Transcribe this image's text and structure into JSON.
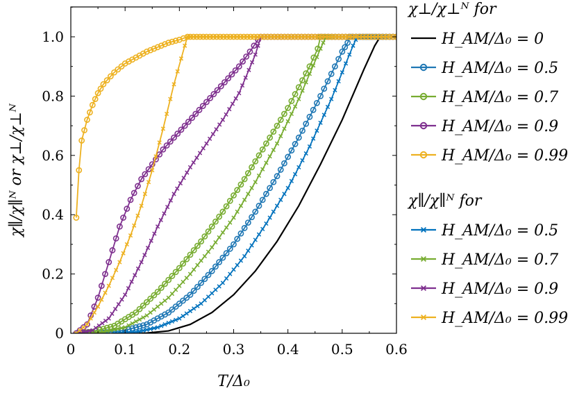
{
  "chart_data": {
    "type": "line",
    "xlabel": "T/Δ₀",
    "ylabel": "χ∥/χ∥ᴺ or χ⊥/χ⊥ᴺ",
    "xlim": [
      0,
      0.6
    ],
    "ylim": [
      0,
      1.1
    ],
    "xticks": [
      0,
      0.1,
      0.2,
      0.3,
      0.4,
      0.5,
      0.6
    ],
    "xtick_labels": [
      "0",
      "0.1",
      "0.2",
      "0.3",
      "0.4",
      "0.5",
      "0.6"
    ],
    "yticks": [
      0,
      0.2,
      0.4,
      0.6,
      0.8,
      1.0
    ],
    "ytick_labels": [
      "0",
      "0.2",
      "0.4",
      "0.6",
      "0.8",
      "1.0"
    ],
    "grid": false,
    "legend_placement": "outside-right",
    "legend_groups": [
      {
        "title": "χ⊥/χ⊥ᴺ for",
        "entries": [
          {
            "label": "H_AM/Δ₀ = 0",
            "color": "#000000",
            "marker": "none"
          },
          {
            "label": "H_AM/Δ₀ = 0.5",
            "color": "#1f77b4",
            "marker": "circle"
          },
          {
            "label": "H_AM/Δ₀ = 0.7",
            "color": "#77ac30",
            "marker": "circle"
          },
          {
            "label": "H_AM/Δ₀ = 0.9",
            "color": "#7e2f8e",
            "marker": "circle"
          },
          {
            "label": "H_AM/Δ₀ = 0.99",
            "color": "#edb120",
            "marker": "circle"
          }
        ]
      },
      {
        "title": "χ∥/χ∥ᴺ for",
        "entries": [
          {
            "label": "H_AM/Δ₀ = 0.5",
            "color": "#0072bd",
            "marker": "x"
          },
          {
            "label": "H_AM/Δ₀ = 0.7",
            "color": "#77ac30",
            "marker": "x"
          },
          {
            "label": "H_AM/Δ₀ = 0.9",
            "color": "#7e2f8e",
            "marker": "x"
          },
          {
            "label": "H_AM/Δ₀ = 0.99",
            "color": "#edb120",
            "marker": "x"
          }
        ]
      }
    ],
    "series": [
      {
        "name": "H_AM/Δ₀ = 0",
        "group": "perp",
        "color": "#000000",
        "marker": "none",
        "x": [
          0.1,
          0.14,
          0.18,
          0.22,
          0.26,
          0.3,
          0.34,
          0.38,
          0.42,
          0.46,
          0.5,
          0.54,
          0.56,
          0.57,
          0.6
        ],
        "y": [
          0,
          0.001,
          0.008,
          0.03,
          0.07,
          0.13,
          0.21,
          0.31,
          0.43,
          0.57,
          0.72,
          0.89,
          0.97,
          1.0,
          1.0
        ]
      },
      {
        "name": "H_AM/Δ₀ = 0.5",
        "group": "perp",
        "color": "#1f77b4",
        "marker": "circle",
        "x": [
          0.01,
          0.06,
          0.1,
          0.14,
          0.18,
          0.22,
          0.26,
          0.3,
          0.34,
          0.38,
          0.42,
          0.46,
          0.5,
          0.51,
          0.515,
          0.52,
          0.56,
          0.6
        ],
        "y": [
          0,
          0.002,
          0.01,
          0.03,
          0.07,
          0.13,
          0.21,
          0.3,
          0.41,
          0.53,
          0.66,
          0.8,
          0.95,
          0.98,
          1.0,
          1.0,
          1.0,
          1.0
        ]
      },
      {
        "name": "H_AM/Δ₀ = 0.7",
        "group": "perp",
        "color": "#77ac30",
        "marker": "circle",
        "x": [
          0.01,
          0.04,
          0.08,
          0.12,
          0.16,
          0.2,
          0.24,
          0.28,
          0.32,
          0.36,
          0.4,
          0.44,
          0.455,
          0.46,
          0.5,
          0.55,
          0.6
        ],
        "y": [
          0,
          0.005,
          0.025,
          0.07,
          0.14,
          0.22,
          0.31,
          0.41,
          0.52,
          0.64,
          0.76,
          0.9,
          0.96,
          1.0,
          1.0,
          1.0,
          1.0
        ]
      },
      {
        "name": "H_AM/Δ₀ = 0.9",
        "group": "perp",
        "color": "#7e2f8e",
        "marker": "circle",
        "x": [
          0.01,
          0.03,
          0.05,
          0.07,
          0.09,
          0.11,
          0.13,
          0.15,
          0.17,
          0.19,
          0.21,
          0.23,
          0.25,
          0.27,
          0.29,
          0.31,
          0.33,
          0.345,
          0.35,
          0.4,
          0.45,
          0.5,
          0.55,
          0.6
        ],
        "y": [
          0,
          0.03,
          0.12,
          0.24,
          0.36,
          0.45,
          0.52,
          0.57,
          0.62,
          0.66,
          0.7,
          0.74,
          0.78,
          0.82,
          0.86,
          0.9,
          0.95,
          0.99,
          1.0,
          1.0,
          1.0,
          1.0,
          1.0,
          1.0
        ]
      },
      {
        "name": "H_AM/Δ₀ = 0.99",
        "group": "perp",
        "color": "#edb120",
        "marker": "circle",
        "x": [
          0.01,
          0.015,
          0.02,
          0.03,
          0.04,
          0.05,
          0.06,
          0.08,
          0.1,
          0.12,
          0.14,
          0.16,
          0.18,
          0.2,
          0.215,
          0.22,
          0.25,
          0.3,
          0.35,
          0.4,
          0.45,
          0.5,
          0.55,
          0.6
        ],
        "y": [
          0.39,
          0.55,
          0.65,
          0.72,
          0.77,
          0.81,
          0.84,
          0.88,
          0.91,
          0.93,
          0.95,
          0.965,
          0.98,
          0.99,
          1.0,
          1.0,
          1.0,
          1.0,
          1.0,
          1.0,
          1.0,
          1.0,
          1.0,
          1.0
        ]
      },
      {
        "name": "H_AM/Δ₀ = 0.5",
        "group": "par",
        "color": "#0072bd",
        "marker": "x",
        "x": [
          0.08,
          0.12,
          0.16,
          0.2,
          0.24,
          0.28,
          0.32,
          0.36,
          0.4,
          0.44,
          0.48,
          0.52,
          0.525,
          0.53,
          0.56,
          0.6
        ],
        "y": [
          0,
          0.004,
          0.02,
          0.05,
          0.1,
          0.17,
          0.26,
          0.37,
          0.49,
          0.63,
          0.79,
          0.97,
          0.99,
          1.0,
          1.0,
          1.0
        ]
      },
      {
        "name": "H_AM/Δ₀ = 0.7",
        "group": "par",
        "color": "#77ac30",
        "marker": "x",
        "x": [
          0.03,
          0.06,
          0.1,
          0.14,
          0.18,
          0.22,
          0.26,
          0.3,
          0.34,
          0.38,
          0.42,
          0.46,
          0.47,
          0.5,
          0.55,
          0.6
        ],
        "y": [
          0,
          0.005,
          0.02,
          0.06,
          0.12,
          0.2,
          0.29,
          0.39,
          0.51,
          0.64,
          0.79,
          0.96,
          1.0,
          1.0,
          1.0,
          1.0
        ]
      },
      {
        "name": "H_AM/Δ₀ = 0.9",
        "group": "par",
        "color": "#7e2f8e",
        "marker": "x",
        "x": [
          0.01,
          0.04,
          0.07,
          0.1,
          0.13,
          0.16,
          0.19,
          0.22,
          0.25,
          0.28,
          0.31,
          0.34,
          0.35,
          0.4,
          0.45,
          0.5,
          0.55,
          0.6
        ],
        "y": [
          0,
          0.01,
          0.05,
          0.13,
          0.24,
          0.36,
          0.47,
          0.56,
          0.64,
          0.72,
          0.81,
          0.94,
          1.0,
          1.0,
          1.0,
          1.0,
          1.0,
          1.0
        ]
      },
      {
        "name": "H_AM/Δ₀ = 0.99",
        "group": "par",
        "color": "#edb120",
        "marker": "x",
        "x": [
          0.01,
          0.03,
          0.05,
          0.07,
          0.09,
          0.11,
          0.13,
          0.15,
          0.17,
          0.19,
          0.21,
          0.215,
          0.22,
          0.25,
          0.3,
          0.35,
          0.4,
          0.45,
          0.5,
          0.55,
          0.6
        ],
        "y": [
          0,
          0.03,
          0.09,
          0.16,
          0.24,
          0.33,
          0.43,
          0.55,
          0.69,
          0.84,
          0.97,
          1.0,
          1.0,
          1.0,
          1.0,
          1.0,
          1.0,
          1.0,
          1.0,
          1.0,
          1.0
        ]
      }
    ]
  }
}
